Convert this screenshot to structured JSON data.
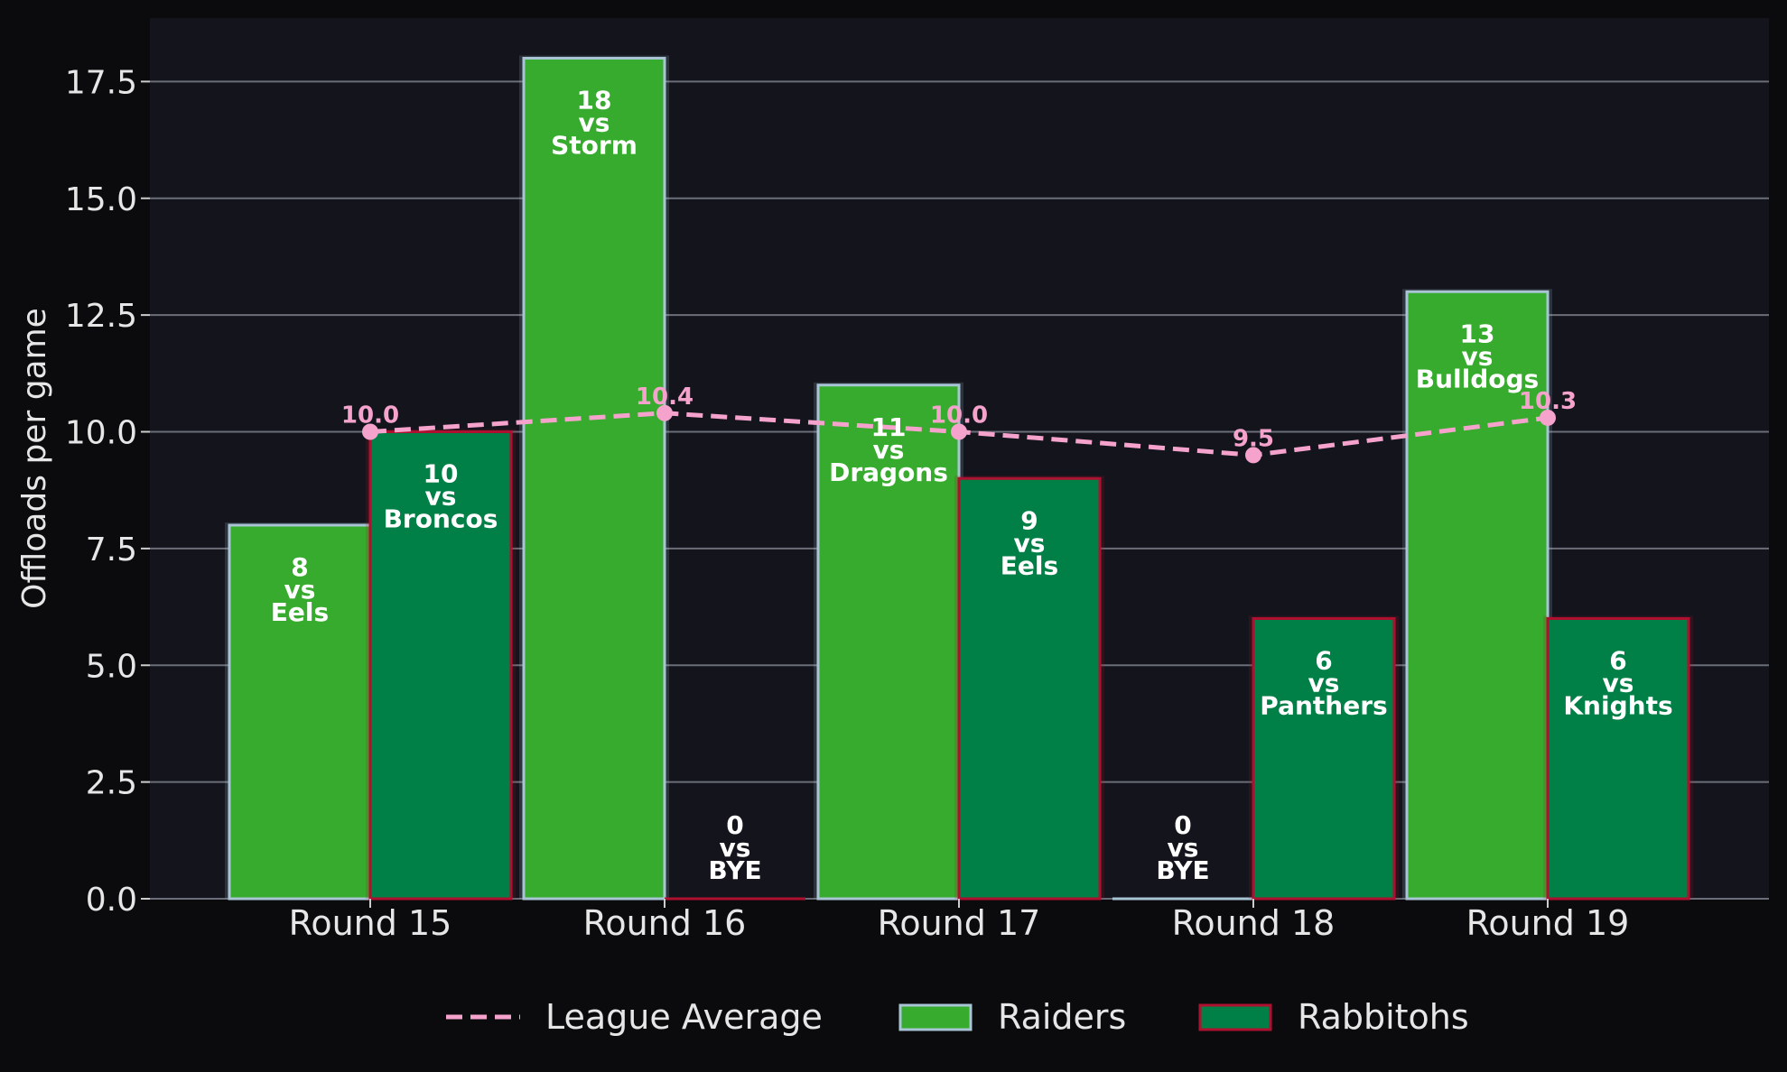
{
  "chart_data": {
    "type": "bar",
    "categories": [
      "Round 15",
      "Round 16",
      "Round 17",
      "Round 18",
      "Round 19"
    ],
    "ylabel": "Offloads per game",
    "xlabel": "",
    "ylim": [
      0,
      18.9
    ],
    "yticks": [
      "0.0",
      "2.5",
      "5.0",
      "7.5",
      "10.0",
      "12.5",
      "15.0",
      "17.5"
    ],
    "ytick_values": [
      0,
      2.5,
      5,
      7.5,
      10,
      12.5,
      15,
      17.5
    ],
    "grid": "horizontal",
    "legend_position": "bottom-center",
    "series": [
      {
        "name": "Raiders",
        "color": "#36ab2e",
        "edge": "#a9c4d4",
        "values": [
          8,
          18,
          11,
          0,
          13
        ],
        "opponents": [
          "Eels",
          "Storm",
          "Dragons",
          "BYE",
          "Bulldogs"
        ]
      },
      {
        "name": "Rabbitohs",
        "color": "#007f46",
        "edge": "#b01030",
        "values": [
          10,
          0,
          9,
          6,
          6
        ],
        "opponents": [
          "Broncos",
          "BYE",
          "Eels",
          "Panthers",
          "Knights"
        ]
      }
    ],
    "league_average": {
      "name": "League Average",
      "color": "#f5a3cc",
      "values": [
        10.0,
        10.4,
        10.0,
        9.5,
        10.3
      ],
      "labels": [
        "10.0",
        "10.4",
        "10.0",
        "9.5",
        "10.3"
      ]
    },
    "vs_text": "vs",
    "legend": [
      "League Average",
      "Raiders",
      "Rabbitohs"
    ]
  }
}
